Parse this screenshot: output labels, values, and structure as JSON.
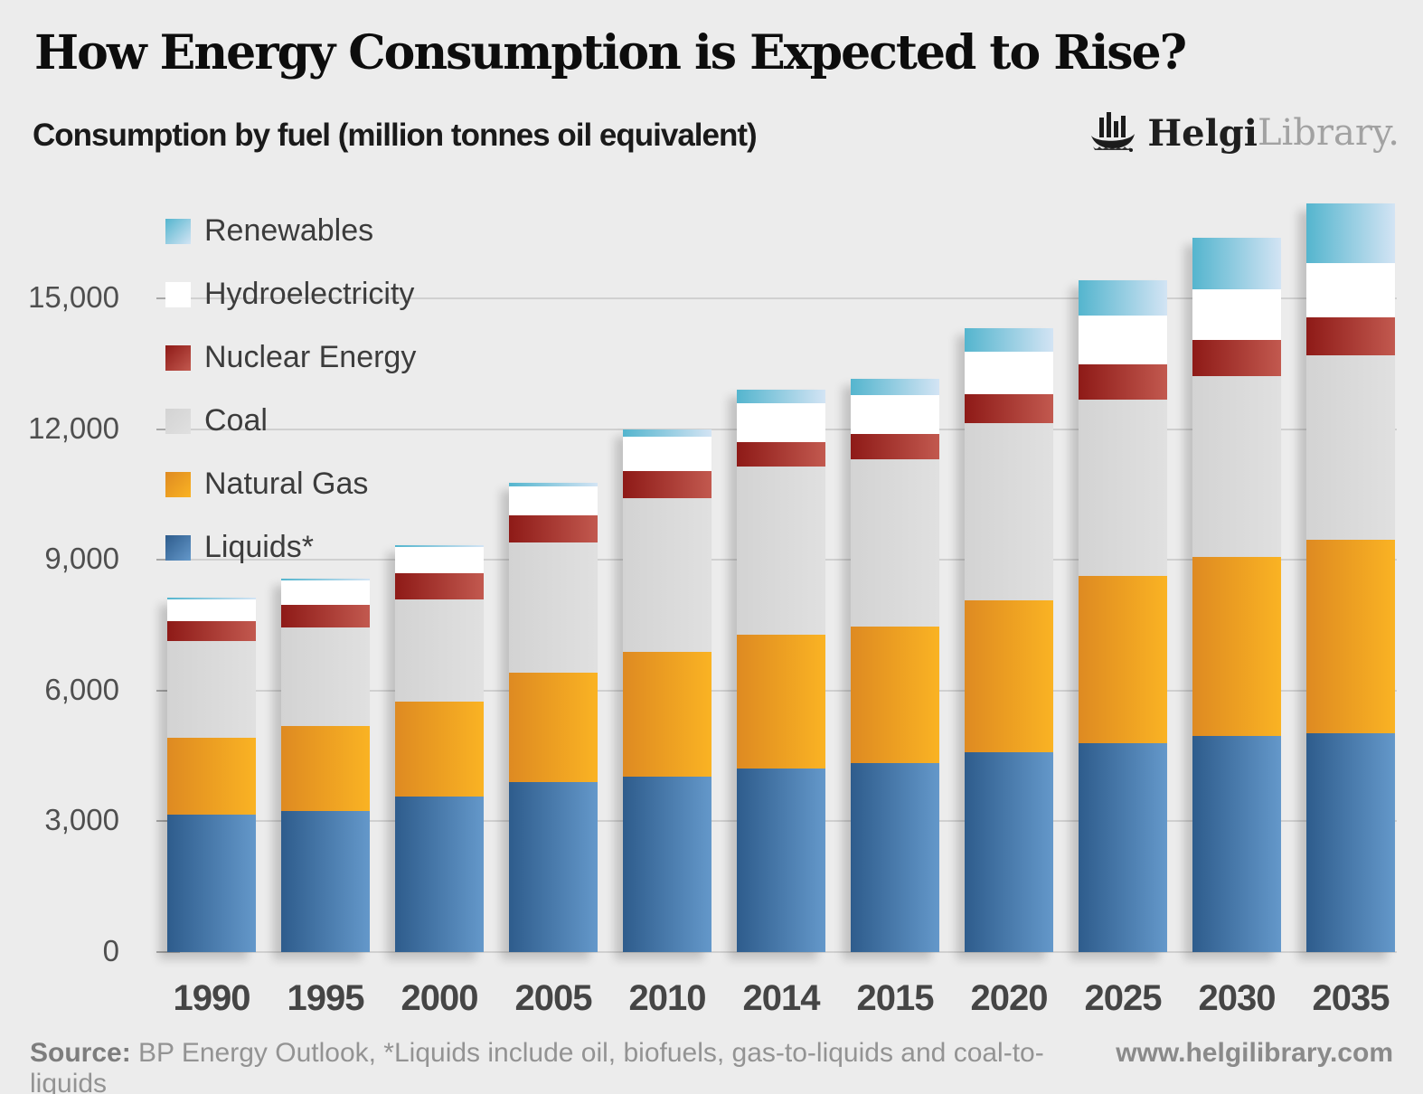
{
  "header": {
    "title": "How Energy Consumption is Expected to Rise?",
    "subtitle": "Consumption by fuel (million tonnes oil equivalent)",
    "logo": {
      "icon": "viking-ship-chart-icon",
      "brand_bold": "Helgi",
      "brand_light": "Library."
    }
  },
  "legend": [
    {
      "label": "Renewables",
      "series_key": "renewables"
    },
    {
      "label": "Hydroelectricity",
      "series_key": "hydro"
    },
    {
      "label": "Nuclear Energy",
      "series_key": "nuclear"
    },
    {
      "label": "Coal",
      "series_key": "coal"
    },
    {
      "label": "Natural Gas",
      "series_key": "gas"
    },
    {
      "label": "Liquids*",
      "series_key": "liquids"
    }
  ],
  "chart_data": {
    "type": "bar",
    "stacked": true,
    "title": "How Energy Consumption is Expected to Rise?",
    "subtitle": "Consumption by fuel (million tonnes oil equivalent)",
    "unit": "million tonnes oil equivalent",
    "legend_position": "top-left",
    "grid": true,
    "categories": [
      "1990",
      "1995",
      "2000",
      "2005",
      "2010",
      "2014",
      "2015",
      "2020",
      "2025",
      "2030",
      "2035"
    ],
    "series": [
      {
        "key": "liquids",
        "name": "Liquids*",
        "color_left": "#2e5c8c",
        "color_right": "#6498ca",
        "values": [
          3150,
          3245,
          3570,
          3900,
          4030,
          4210,
          4330,
          4590,
          4800,
          4945,
          5030
        ]
      },
      {
        "key": "gas",
        "name": "Natural Gas",
        "color_left": "#de8a22",
        "color_right": "#fab323",
        "values": [
          1770,
          1940,
          2175,
          2510,
          2860,
          3065,
          3135,
          3490,
          3825,
          4115,
          4435
        ]
      },
      {
        "key": "coal",
        "name": "Coal",
        "color_left": "#d3d3d3",
        "color_right": "#e0e0e0",
        "values": [
          2220,
          2255,
          2355,
          2990,
          3530,
          3860,
          3840,
          4050,
          4055,
          4150,
          4230
        ]
      },
      {
        "key": "nuclear",
        "name": "Nuclear Energy",
        "color_left": "#8e1a17",
        "color_right": "#c2594f",
        "values": [
          455,
          525,
          585,
          625,
          625,
          575,
          585,
          665,
          810,
          835,
          870
        ]
      },
      {
        "key": "hydro",
        "name": "Hydroelectricity",
        "color_left": "#ffffff",
        "color_right": "#ffffff",
        "values": [
          490,
          560,
          600,
          660,
          780,
          880,
          895,
          990,
          1110,
          1160,
          1240
        ]
      },
      {
        "key": "renewables",
        "name": "Renewables",
        "color_left": "#54b5ce",
        "color_right": "#d3e4f4",
        "values": [
          40,
          50,
          60,
          85,
          170,
          315,
          365,
          535,
          810,
          1180,
          1370
        ]
      }
    ],
    "totals": [
      8125,
      8575,
      9345,
      10770,
      11995,
      12905,
      13150,
      14320,
      15410,
      16385,
      17175
    ],
    "y_axis": {
      "tick_labels": [
        "0",
        "3,000",
        "6,000",
        "9,000",
        "12,000",
        "15,000"
      ],
      "tick_values": [
        0,
        3000,
        6000,
        9000,
        12000,
        15000
      ],
      "range_shown": [
        0,
        15000
      ]
    }
  },
  "footer": {
    "source_label": "Source:",
    "source_text": "BP Energy Outlook, *Liquids include oil, biofuels, gas-to-liquids and coal-to-liquids",
    "website": "www.helgilibrary.com"
  }
}
